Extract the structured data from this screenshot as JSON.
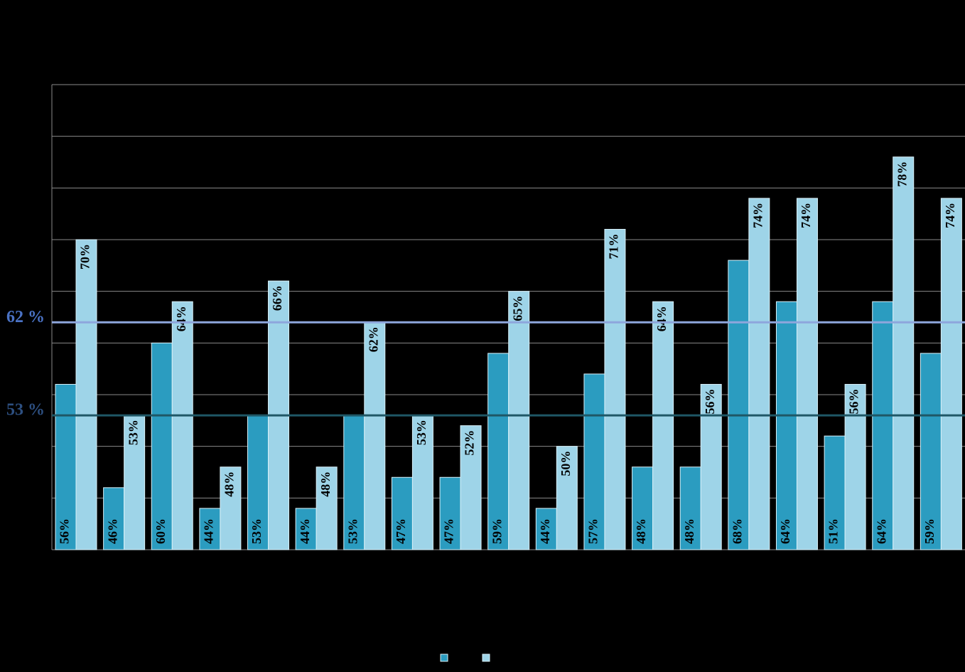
{
  "chart_data": {
    "type": "bar",
    "categories": [
      null,
      null,
      null,
      null,
      null,
      null,
      null,
      null,
      null,
      null,
      null,
      null,
      null,
      null,
      null,
      null,
      null,
      null,
      null
    ],
    "series": [
      {
        "color": "#2b9cc0",
        "values": [
          56,
          46,
          60,
          44,
          53,
          44,
          53,
          47,
          47,
          59,
          44,
          57,
          48,
          48,
          68,
          64,
          51,
          64,
          59
        ],
        "value_labels": [
          "56%",
          "46%",
          "60%",
          "44%",
          "53%",
          "44%",
          "53%",
          "47%",
          "47%",
          "59%",
          "44%",
          "57%",
          "48%",
          "48%",
          "68%",
          "64%",
          "51%",
          "64%",
          "59%"
        ]
      },
      {
        "color": "#9ed4e8",
        "values": [
          70,
          53,
          64,
          48,
          66,
          48,
          62,
          53,
          52,
          65,
          50,
          71,
          64,
          56,
          74,
          74,
          56,
          78,
          74
        ],
        "value_labels": [
          "70%",
          "53%",
          "64%",
          "48%",
          "66%",
          "48%",
          "62%",
          "53%",
          "52%",
          "65%",
          "50%",
          "71%",
          "64%",
          "56%",
          "74%",
          "74%",
          "56%",
          "78%",
          "74%"
        ]
      }
    ],
    "reference_lines": [
      {
        "value": 62,
        "label": "62 %",
        "color": "#8ea6dc",
        "label_color": "#4a72c4"
      },
      {
        "value": 53,
        "label": "53 %",
        "color": "#1f5766",
        "label_color": "#2d4f80"
      }
    ],
    "ylim": [
      40,
      85
    ],
    "yticks": [
      40,
      45,
      50,
      55,
      60,
      65,
      70,
      75,
      80,
      85
    ],
    "grid": true,
    "legend": "bottom"
  }
}
